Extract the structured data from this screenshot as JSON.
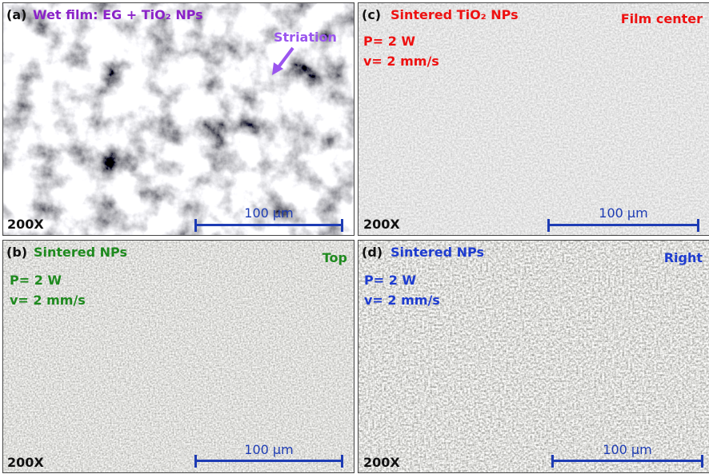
{
  "panels": [
    {
      "label": "(a)",
      "title": "Wet film: EG + TiO₂ NPs",
      "annotation": "Striation",
      "magnification": "200X",
      "scale": "100 µm"
    },
    {
      "label": "(c)",
      "title": "Sintered TiO₂ NPs",
      "corner": "Film center",
      "params": [
        "P= 2 W",
        "v= 2 mm/s"
      ],
      "magnification": "200X",
      "scale": "100 µm"
    },
    {
      "label": "(b)",
      "title": "Sintered NPs",
      "corner": "Top",
      "params": [
        "P= 2 W",
        "v= 2 mm/s"
      ],
      "magnification": "200X",
      "scale": "100 µm"
    },
    {
      "label": "(d)",
      "title": "Sintered NPs",
      "corner": "Right",
      "params": [
        "P= 2 W",
        "v= 2 mm/s"
      ],
      "magnification": "200X",
      "scale": "100 µm"
    }
  ]
}
